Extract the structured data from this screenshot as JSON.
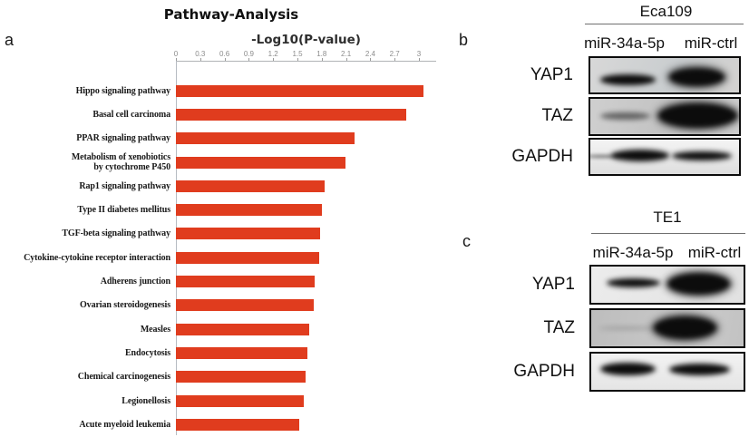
{
  "panels": {
    "a": {
      "label": "a"
    },
    "b": {
      "label": "b",
      "cell_line": "Eca109",
      "lanes": [
        "miR-34a-5p",
        "miR-ctrl"
      ],
      "rows": [
        {
          "label": "YAP1",
          "bands": [
            "medium",
            "strong"
          ]
        },
        {
          "label": "TAZ",
          "bands": [
            "weak",
            "very-strong"
          ]
        },
        {
          "label": "GAPDH",
          "bands": [
            "strong",
            "strong"
          ]
        }
      ]
    },
    "c": {
      "label": "c",
      "cell_line": "TE1",
      "lanes": [
        "miR-34a-5p",
        "miR-ctrl"
      ],
      "rows": [
        {
          "label": "YAP1",
          "bands": [
            "medium",
            "very-strong"
          ]
        },
        {
          "label": "TAZ",
          "bands": [
            "very-weak",
            "very-strong"
          ]
        },
        {
          "label": "GAPDH",
          "bands": [
            "strong",
            "strong"
          ]
        }
      ]
    }
  },
  "chart_data": {
    "type": "bar",
    "orientation": "horizontal",
    "title": "Pathway-Analysis",
    "xlabel": "-Log10(P-value)",
    "ylabel": "",
    "xlim": [
      0,
      3.2
    ],
    "grid": false,
    "legend": false,
    "bar_color": "#E03C1E",
    "tick_labels": [
      "0",
      "0.3",
      "0.6",
      "0.9",
      "1.2",
      "1.5",
      "1.8",
      "2.1",
      "2.4",
      "2.7",
      "3"
    ],
    "categories": [
      "Hippo signaling pathway",
      "Basal cell carcinoma",
      "PPAR signaling pathway",
      "Metabolism of xenobiotics\nby cytochrome P450",
      "Rap1 signaling pathway",
      "Type II diabetes mellitus",
      "TGF-beta signaling pathway",
      "Cytokine-cytokine receptor interaction",
      "Adherens junction",
      "Ovarian steroidogenesis",
      "Measles",
      "Endocytosis",
      "Chemical carcinogenesis",
      "Legionellosis",
      "Acute myeloid leukemia"
    ],
    "values": [
      3.06,
      2.84,
      2.21,
      2.09,
      1.84,
      1.8,
      1.78,
      1.77,
      1.71,
      1.7,
      1.65,
      1.62,
      1.6,
      1.58,
      1.52
    ]
  },
  "colors": {
    "axis_line": "#b0b3b6",
    "tick_text": "#8c8c8c",
    "text": "#111111"
  }
}
